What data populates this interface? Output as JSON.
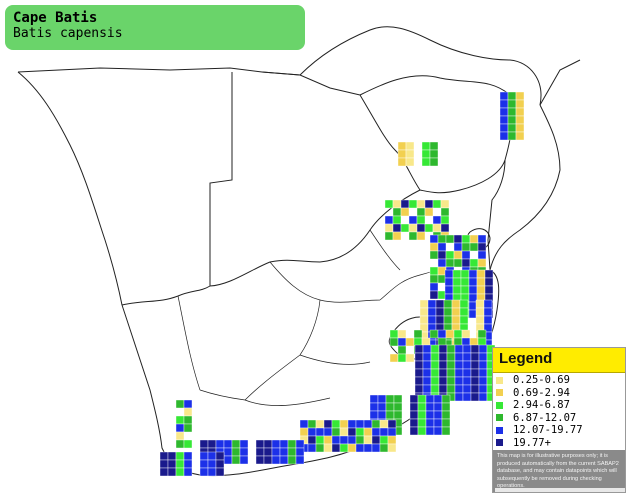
{
  "species": {
    "common_name": "Cape Batis",
    "scientific_name": "Batis capensis"
  },
  "legend": {
    "title": "Legend",
    "entries": [
      {
        "label": "0.25-0.69",
        "color": "#f8e88a"
      },
      {
        "label": "0.69-2.94",
        "color": "#f2d050"
      },
      {
        "label": "2.94-6.87",
        "color": "#36e836"
      },
      {
        "label": "6.87-12.07",
        "color": "#2eb82e"
      },
      {
        "label": "12.07-19.77",
        "color": "#1c30e8"
      },
      {
        "label": "19.77+",
        "color": "#1a1a8c"
      }
    ],
    "disclaimer": "This map is for illustrative purposes only; it is produced automatically from the current SABAP2 database, and may contain datapoints which will subsequently be removed during checking operations."
  },
  "colors": {
    "title_box": "#6ad46a",
    "legend_header": "#ffec00",
    "disclaimer_bg": "#8a8a8a",
    "border_lines": "#222222",
    "coast": "#000000"
  }
}
